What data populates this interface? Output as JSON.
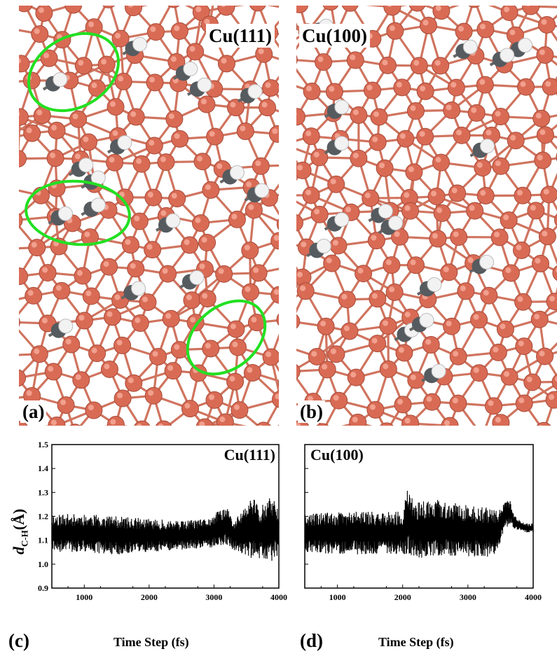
{
  "panels": {
    "a": {
      "surface": "Cu(111)",
      "tag": "(a)"
    },
    "b": {
      "surface": "Cu(100)",
      "tag": "(b)"
    }
  },
  "ylabel": {
    "symbol": "d",
    "subscript": "C-H",
    "unit": "(Å)"
  },
  "xlabel": "Time Step (fs)",
  "colors": {
    "copper": "#d96b55",
    "bond": "#d0745f",
    "carbon": "#555b5f",
    "hydrogen": "#f2f2f2",
    "highlight": "#22e022"
  },
  "chart_data": [
    {
      "type": "line",
      "panel": "(c)",
      "title": "Cu(111)",
      "xlabel": "Time Step (fs)",
      "ylabel": "dC-H(Å)",
      "xlim": [
        500,
        4000
      ],
      "ylim": [
        0.9,
        1.5
      ],
      "xticks": [
        1000,
        2000,
        3000,
        4000
      ],
      "yticks": [
        0.9,
        1.0,
        1.1,
        1.2,
        1.3,
        1.4,
        1.5
      ],
      "series": [
        {
          "x": [
            500,
            1000,
            1500,
            2000,
            2500,
            2900,
            3100,
            3200,
            3300,
            3500,
            3600,
            3700,
            3800,
            3900,
            4000
          ],
          "center": [
            1.13,
            1.13,
            1.12,
            1.12,
            1.12,
            1.13,
            1.15,
            1.16,
            1.12,
            1.14,
            1.15,
            1.13,
            1.14,
            1.15,
            1.14
          ],
          "amplitude": [
            0.08,
            0.08,
            0.08,
            0.07,
            0.06,
            0.06,
            0.08,
            0.08,
            0.06,
            0.11,
            0.14,
            0.11,
            0.12,
            0.14,
            0.1
          ]
        }
      ]
    },
    {
      "type": "line",
      "panel": "(d)",
      "title": "Cu(100)",
      "xlabel": "Time Step (fs)",
      "xlim": [
        500,
        4000
      ],
      "ylim": [
        0.9,
        1.5
      ],
      "xticks": [
        1000,
        2000,
        3000,
        4000
      ],
      "series": [
        {
          "x": [
            500,
            1000,
            1500,
            2000,
            2080,
            2200,
            2500,
            3000,
            3450,
            3550,
            3650,
            3700,
            3800,
            3900,
            4000
          ],
          "center": [
            1.13,
            1.13,
            1.13,
            1.13,
            1.18,
            1.14,
            1.15,
            1.14,
            1.13,
            1.2,
            1.22,
            1.18,
            1.16,
            1.15,
            1.15
          ],
          "amplitude": [
            0.08,
            0.09,
            0.09,
            0.09,
            0.14,
            0.12,
            0.12,
            0.11,
            0.1,
            0.06,
            0.05,
            0.03,
            0.02,
            0.02,
            0.02
          ]
        }
      ]
    }
  ]
}
